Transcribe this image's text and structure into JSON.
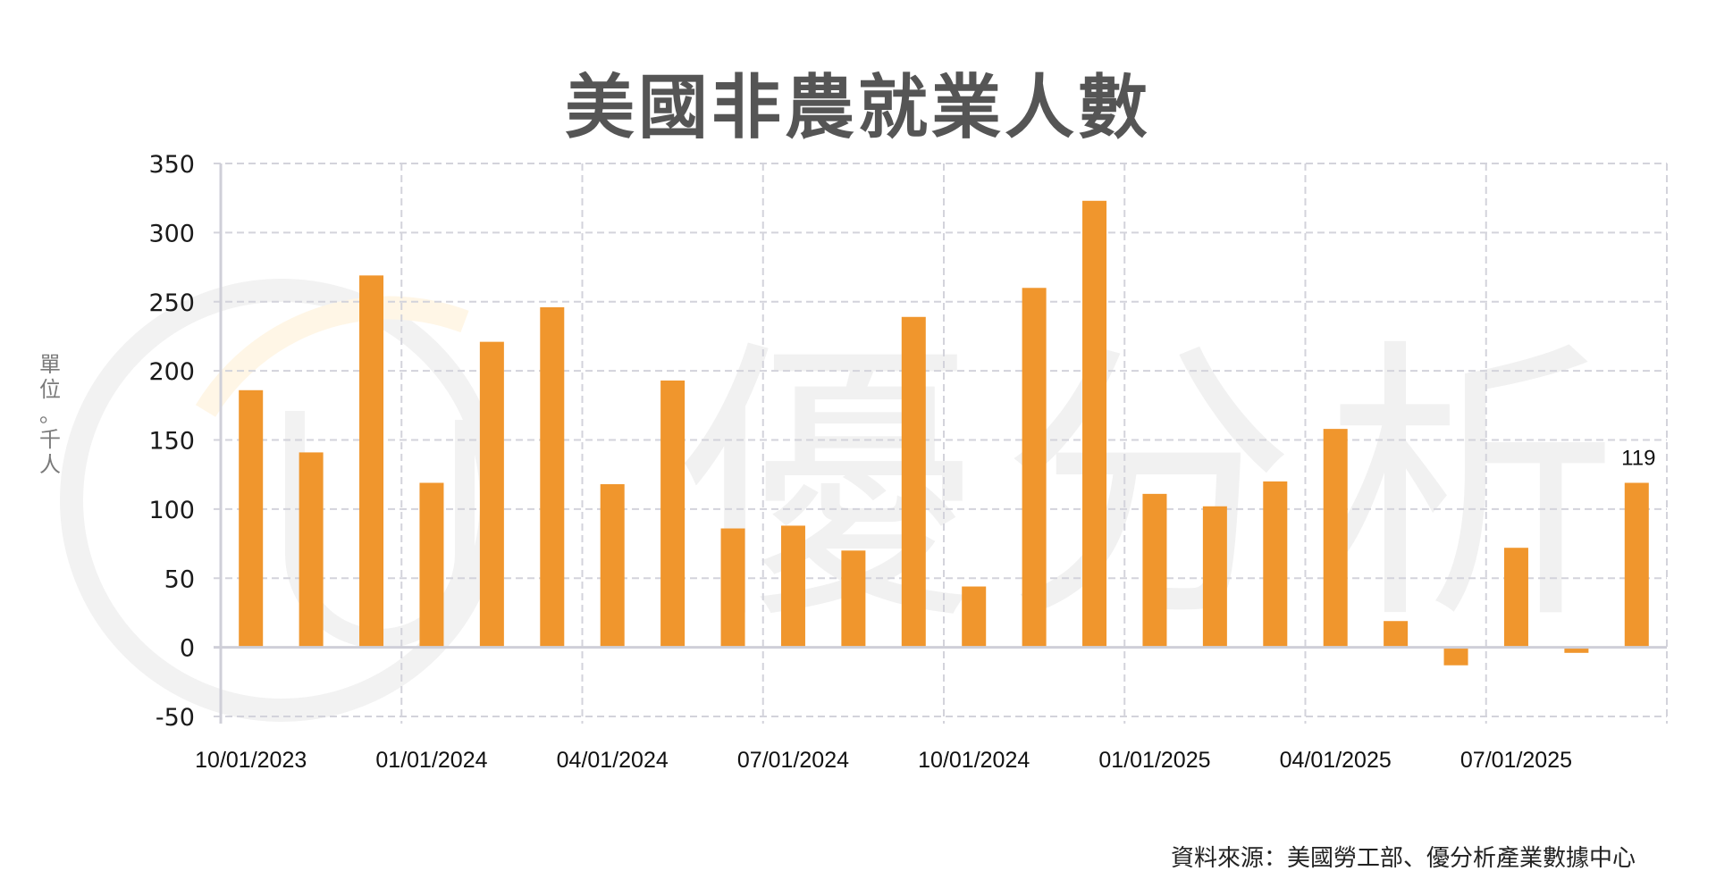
{
  "header": {
    "title": "美國非農就業人數"
  },
  "axis": {
    "unit_label_chars": [
      "單",
      "位",
      "。",
      "千",
      "人"
    ],
    "y_ticks": [
      "350",
      "300",
      "250",
      "200",
      "150",
      "100",
      "50",
      "0",
      "-50"
    ],
    "x_ticks": [
      "10/01/2023",
      "01/01/2024",
      "04/01/2024",
      "07/01/2024",
      "10/01/2024",
      "01/01/2025",
      "04/01/2025",
      "07/01/2025"
    ]
  },
  "last_value_label": "119",
  "footer": {
    "source": "資料來源：美國勞工部、優分析產業數據中心"
  },
  "watermark": {
    "text": "優分析"
  },
  "colors": {
    "bar": "#F0962D",
    "grid": "#d3d3db",
    "axis": "#cfcfd8",
    "title": "#555555"
  },
  "chart_data": {
    "type": "bar",
    "title": "美國非農就業人數",
    "xlabel": "",
    "ylabel": "單位。千人",
    "ylim": [
      -50,
      350
    ],
    "y_tick_step": 50,
    "grid": true,
    "legend": null,
    "categories": [
      "10/01/2023",
      "11/01/2023",
      "12/01/2023",
      "01/01/2024",
      "02/01/2024",
      "03/01/2024",
      "04/01/2024",
      "05/01/2024",
      "06/01/2024",
      "07/01/2024",
      "08/01/2024",
      "09/01/2024",
      "10/01/2024",
      "11/01/2024",
      "12/01/2024",
      "01/01/2025",
      "02/01/2025",
      "03/01/2025",
      "04/01/2025",
      "05/01/2025",
      "06/01/2025",
      "07/01/2025",
      "08/01/2025",
      "09/01/2025"
    ],
    "values": [
      186,
      141,
      269,
      119,
      221,
      246,
      118,
      193,
      86,
      88,
      70,
      239,
      44,
      260,
      323,
      111,
      102,
      120,
      158,
      19,
      -13,
      72,
      -4,
      119
    ],
    "annotations": [
      {
        "index": 23,
        "text": "119"
      }
    ],
    "source": "資料來源：美國勞工部、優分析產業數據中心"
  }
}
